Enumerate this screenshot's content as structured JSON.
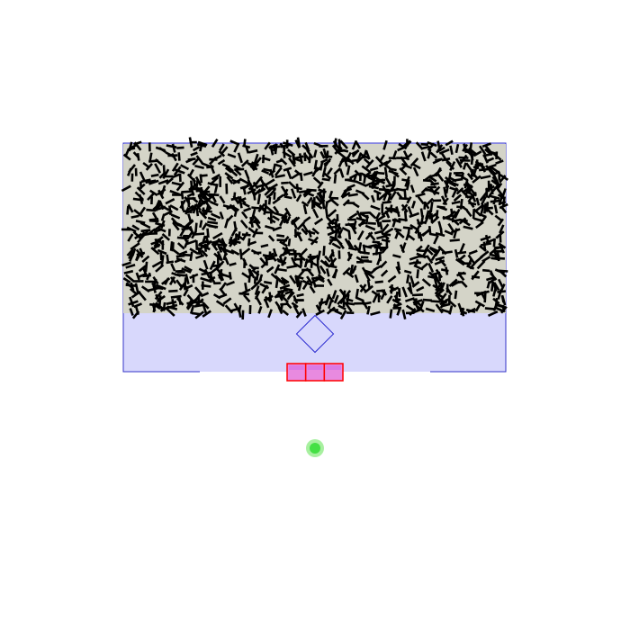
{
  "scene": {
    "background_color": "#ffffff",
    "container": {
      "fill": "#d8d8fc",
      "stroke": "#3535c8"
    },
    "granular_layer": {
      "fill": "#d4d4c8",
      "stick_color": "#000000",
      "stick_count": 1500
    },
    "diamond": {
      "stroke": "#2a2ad0",
      "fill": "none"
    },
    "gate": {
      "cell_count": 3,
      "fill": "#e88ae0",
      "stroke": "#ff0000"
    },
    "target": {
      "core_color": "#44e044",
      "halo_color": "#a8f0a0"
    }
  }
}
